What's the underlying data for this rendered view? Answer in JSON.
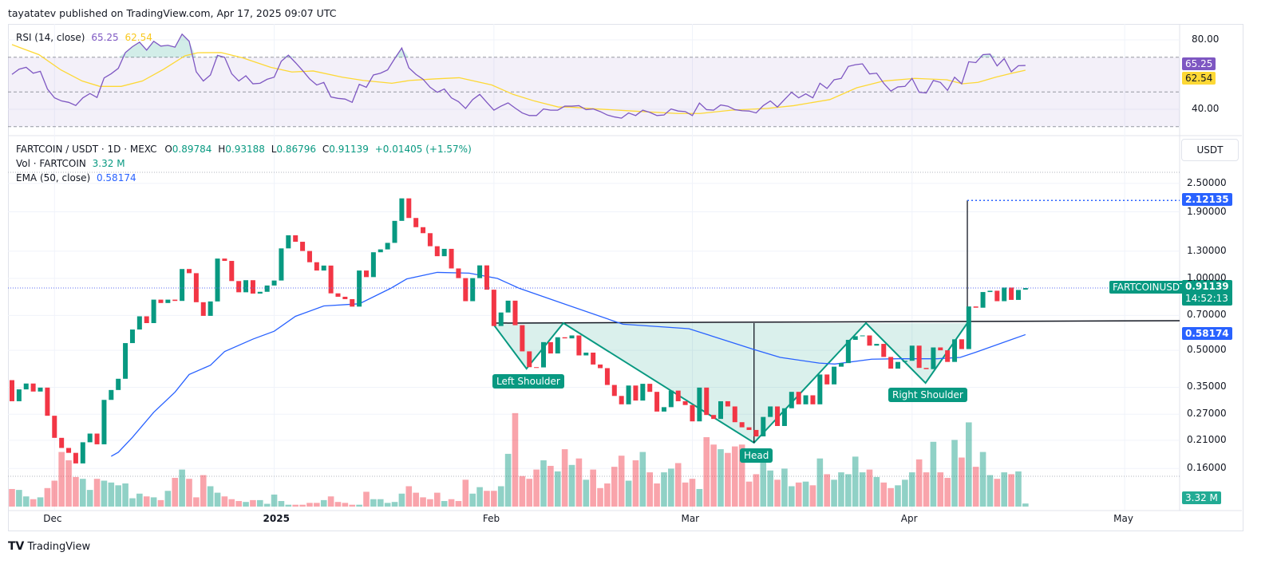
{
  "header": {
    "published": "tayatatev published on TradingView.com, Apr 17, 2025 09:07 UTC"
  },
  "rsi_legend": {
    "label": "RSI (14, close)",
    "rsi": "65.25",
    "ma": "62.54"
  },
  "symbol_legend": {
    "symbol": "FARTCOIN / USDT · 1D · MEXC",
    "o_label": "O",
    "o": "0.89784",
    "h_label": "H",
    "h": "0.93188",
    "l_label": "L",
    "l": "0.86796",
    "c_label": "C",
    "c": "0.91139",
    "change": "+0.01405 (+1.57%)"
  },
  "vol_legend": {
    "label": "Vol · FARTCOIN",
    "value": "3.32 M"
  },
  "ema_legend": {
    "label": "EMA (50, close)",
    "value": "0.58174"
  },
  "currency_button": "USDT",
  "footer_logo": "TradingView",
  "colors": {
    "up": "#089981",
    "down": "#f23645",
    "ema": "#2962ff",
    "rsi": "#7e57c2",
    "rsi_ma": "#fdd835",
    "pattern": "#089981"
  },
  "chart_data": [
    {
      "type": "candlestick",
      "scale": "log",
      "first_open": 0.375,
      "last_open": 0.89784,
      "closes": [
        0.306,
        0.343,
        0.363,
        0.336,
        0.349,
        0.266,
        0.215,
        0.195,
        0.186,
        0.168,
        0.206,
        0.224,
        0.202,
        0.31,
        0.341,
        0.38,
        0.536,
        0.611,
        0.694,
        0.65,
        0.815,
        0.789,
        0.815,
        0.805,
        1.095,
        1.052,
        0.795,
        0.697,
        0.801,
        1.211,
        1.184,
        0.975,
        0.875,
        0.983,
        0.864,
        0.879,
        0.934,
        0.98,
        1.336,
        1.516,
        1.424,
        1.303,
        1.169,
        1.079,
        1.132,
        0.866,
        0.838,
        0.819,
        0.762,
        1.079,
        1.013,
        1.287,
        1.323,
        1.409,
        1.742,
        2.164,
        1.791,
        1.639,
        1.547,
        1.364,
        1.239,
        1.33,
        1.101,
        1.003,
        0.803,
        1.003,
        1.134,
        0.897,
        0.632,
        0.72,
        0.807,
        0.637,
        0.495,
        0.425,
        0.424,
        0.541,
        0.485,
        0.567,
        0.561,
        0.577,
        0.476,
        0.489,
        0.436,
        0.421,
        0.358,
        0.322,
        0.297,
        0.356,
        0.308,
        0.362,
        0.335,
        0.277,
        0.289,
        0.339,
        0.306,
        0.295,
        0.252,
        0.349,
        0.268,
        0.258,
        0.306,
        0.291,
        0.25,
        0.238,
        0.232,
        0.218,
        0.263,
        0.291,
        0.241,
        0.286,
        0.335,
        0.297,
        0.324,
        0.297,
        0.396,
        0.36,
        0.427,
        0.442,
        0.553,
        0.573,
        0.577,
        0.523,
        0.532,
        0.469,
        0.419,
        0.447,
        0.452,
        0.523,
        0.422,
        0.417,
        0.514,
        0.5,
        0.447,
        0.556,
        0.506,
        0.763,
        0.754,
        0.877,
        0.888,
        0.803,
        0.916,
        0.813,
        0.895,
        0.91139
      ],
      "volume_m": [
        19,
        18,
        11,
        8,
        10,
        20,
        28,
        59,
        50,
        32,
        30,
        18,
        30,
        28,
        26,
        23,
        25,
        9,
        14,
        11,
        10,
        7,
        17,
        31,
        40,
        30,
        10,
        34,
        22,
        15,
        11,
        8,
        6,
        5,
        7,
        7,
        3,
        13,
        6,
        2,
        2,
        2,
        4,
        4,
        7,
        11,
        5,
        4,
        2,
        2,
        16,
        8,
        8,
        4,
        5,
        14,
        22,
        15,
        10,
        8,
        15,
        6,
        8,
        6,
        29,
        14,
        21,
        17,
        17,
        22,
        57,
        101,
        33,
        30,
        40,
        50,
        44,
        38,
        62,
        45,
        52,
        29,
        40,
        20,
        25,
        43,
        55,
        28,
        50,
        59,
        37,
        25,
        37,
        41,
        47,
        26,
        30,
        19,
        75,
        67,
        62,
        58,
        65,
        67,
        27,
        35,
        50,
        39,
        29,
        41,
        22,
        26,
        27,
        23,
        52,
        35,
        29,
        37,
        35,
        54,
        37,
        40,
        32,
        26,
        20,
        23,
        29,
        37,
        51,
        37,
        70,
        37,
        31,
        72,
        53,
        91,
        43,
        59,
        34,
        30,
        37,
        35,
        38,
        3.32
      ],
      "ema50_points": [
        [
          14,
          0.18
        ],
        [
          15,
          0.187
        ],
        [
          17,
          0.216
        ],
        [
          20,
          0.275
        ],
        [
          23,
          0.334
        ],
        [
          25,
          0.396
        ],
        [
          28,
          0.433
        ],
        [
          30,
          0.494
        ],
        [
          34,
          0.557
        ],
        [
          37,
          0.601
        ],
        [
          40,
          0.694
        ],
        [
          44,
          0.767
        ],
        [
          49,
          0.783
        ],
        [
          53.5,
          0.911
        ],
        [
          55.7,
          0.995
        ],
        [
          60,
          1.06
        ],
        [
          64.5,
          1.052
        ],
        [
          68.5,
          1.0
        ],
        [
          71.5,
          0.911
        ],
        [
          76.8,
          0.803
        ],
        [
          86.2,
          0.643
        ],
        [
          95.5,
          0.616
        ],
        [
          104.7,
          0.504
        ],
        [
          108.4,
          0.467
        ],
        [
          113.9,
          0.442
        ],
        [
          116.1,
          0.438
        ],
        [
          121.3,
          0.459
        ],
        [
          125,
          0.461
        ],
        [
          130.5,
          0.461
        ],
        [
          133.8,
          0.467
        ],
        [
          136,
          0.491
        ],
        [
          143,
          0.58174
        ]
      ],
      "x_ticks": [
        {
          "label": "Dec",
          "index": 6
        },
        {
          "label": "2025",
          "index": 37
        },
        {
          "label": "Feb",
          "index": 68
        },
        {
          "label": "Mar",
          "index": 96
        },
        {
          "label": "Apr",
          "index": 127
        },
        {
          "label": "May",
          "index": 157
        }
      ],
      "y_ticks": [
        "2.50000",
        "1.90000",
        "1.30000",
        "1.00000",
        "0.70000",
        "0.50000",
        "0.35000",
        "0.27000",
        "0.21000",
        "0.16000"
      ],
      "last_price": {
        "symbol_tag": "FARTCOINUSDT",
        "price": "0.91139",
        "countdown": "14:52:13"
      },
      "ema_tag": "0.58174",
      "target_tag": "2.12135",
      "volume_tag": "3.32 M",
      "pattern": {
        "neckline": 0.65,
        "target": 2.12135,
        "points": [
          [
            67.8,
            0.65
          ],
          [
            72.6,
            0.419
          ],
          [
            77.8,
            0.65
          ],
          [
            104.7,
            0.205
          ],
          [
            120.5,
            0.65
          ],
          [
            128.9,
            0.365
          ],
          [
            134.8,
            0.65
          ]
        ],
        "labels": {
          "left": "Left Shoulder",
          "head": "Head",
          "right": "Right Shoulder"
        }
      }
    },
    {
      "type": "line",
      "name": "RSI (14, close)",
      "levels": [
        70,
        50,
        30
      ],
      "y_ticks": [
        "80.00",
        "40.00"
      ],
      "rsi": [
        60.1,
        63.1,
        64.2,
        60.8,
        61.9,
        51.7,
        46.6,
        44.8,
        44.0,
        42.2,
        46.6,
        49.1,
        46.8,
        58.1,
        60.5,
        63.6,
        72.7,
        76.1,
        78.7,
        74.1,
        79.2,
        76.4,
        76.9,
        75.8,
        83.3,
        79.2,
        61.6,
        56.3,
        59.8,
        71.1,
        70.0,
        60.5,
        56.3,
        59.3,
        54.7,
        55.0,
        57.3,
        58.5,
        67.7,
        71.2,
        66.9,
        62.4,
        57.5,
        54.0,
        55.5,
        47.1,
        46.3,
        45.9,
        44.0,
        54.4,
        52.7,
        59.8,
        60.8,
        62.7,
        69.2,
        75.3,
        63.9,
        60.1,
        57.3,
        52.7,
        49.8,
        51.7,
        46.6,
        44.4,
        40.5,
        45.6,
        48.6,
        44.0,
        39.5,
        41.8,
        43.7,
        40.7,
        37.9,
        36.4,
        36.4,
        40.2,
        39.5,
        39.5,
        41.8,
        41.8,
        42.1,
        39.8,
        40.2,
        38.7,
        36.7,
        35.6,
        34.9,
        37.9,
        36.4,
        39.5,
        38.2,
        36.4,
        36.7,
        40.2,
        39.0,
        38.7,
        36.4,
        43.6,
        39.8,
        39.5,
        42.5,
        41.8,
        39.8,
        39.2,
        39.0,
        37.9,
        42.1,
        44.8,
        41.3,
        45.6,
        49.8,
        46.6,
        48.9,
        46.6,
        55.0,
        52.0,
        57.0,
        57.8,
        64.7,
        65.7,
        66.2,
        60.4,
        60.8,
        55.0,
        50.5,
        52.9,
        53.2,
        57.8,
        49.8,
        49.4,
        56.6,
        55.5,
        50.9,
        58.5,
        54.7,
        67.4,
        66.9,
        71.5,
        71.8,
        65.0,
        69.2,
        61.6,
        65.1,
        65.25
      ],
      "rsi_ma_points": [
        [
          0,
          77.3
        ],
        [
          1.3,
          75.3
        ],
        [
          3.8,
          71.5
        ],
        [
          6.9,
          62.7
        ],
        [
          9.9,
          56.3
        ],
        [
          12.4,
          53.2
        ],
        [
          15.4,
          53.2
        ],
        [
          18.4,
          56.3
        ],
        [
          21.4,
          63.1
        ],
        [
          24.4,
          70.8
        ],
        [
          26.2,
          72.6
        ],
        [
          29.5,
          72.7
        ],
        [
          32.5,
          69.7
        ],
        [
          36.5,
          64.2
        ],
        [
          39.5,
          61.5
        ],
        [
          42.5,
          62.1
        ],
        [
          46.6,
          58.5
        ],
        [
          49.6,
          56.6
        ],
        [
          53.6,
          55.0
        ],
        [
          56.1,
          56.6
        ],
        [
          59.6,
          57.5
        ],
        [
          63.1,
          58.2
        ],
        [
          67.7,
          54.0
        ],
        [
          70.7,
          48.6
        ],
        [
          73.7,
          44.8
        ],
        [
          77.1,
          41.3
        ],
        [
          78.7,
          41.3
        ],
        [
          82.5,
          40.2
        ],
        [
          87.6,
          39.0
        ],
        [
          93.9,
          37.6
        ],
        [
          97.1,
          37.6
        ],
        [
          101.5,
          39.5
        ],
        [
          106.6,
          40.5
        ],
        [
          110.3,
          42.1
        ],
        [
          115.4,
          45.6
        ],
        [
          119.2,
          52.4
        ],
        [
          123,
          56.3
        ],
        [
          127.4,
          57.8
        ],
        [
          131.9,
          57.0
        ],
        [
          134.1,
          54.7
        ],
        [
          136.3,
          55.5
        ],
        [
          138.8,
          58.5
        ],
        [
          141.1,
          60.8
        ],
        [
          143,
          62.54
        ]
      ]
    }
  ]
}
